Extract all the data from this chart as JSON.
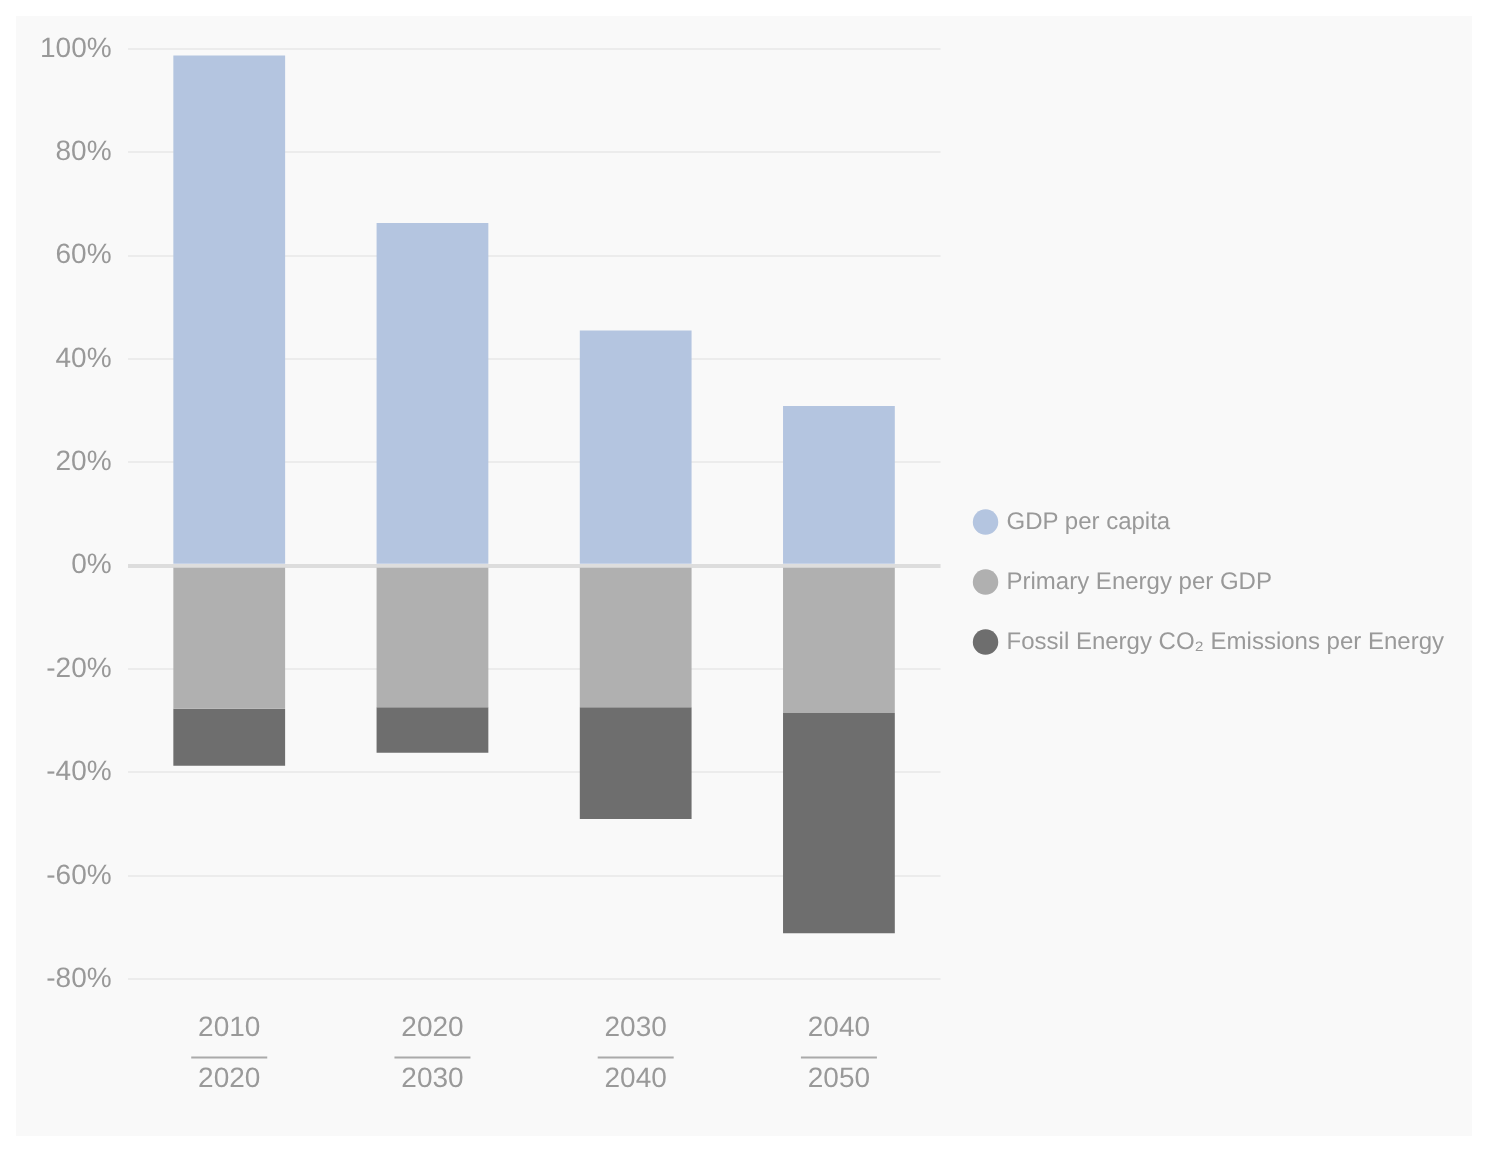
{
  "chart_data": {
    "type": "bar",
    "stacked": true,
    "categories": [
      "2010\n2020",
      "2020\n2030",
      "2030\n2040",
      "2040\n2050"
    ],
    "series": [
      {
        "name": "GDP per capita",
        "color": "#b4c5e0",
        "values": [
          98.7,
          66.3,
          45.5,
          30.9
        ]
      },
      {
        "name": "Primary Energy per GDP",
        "color": "#b0b0b0",
        "values": [
          -27.7,
          -27.4,
          -27.4,
          -28.5
        ]
      },
      {
        "name": "Fossil Energy CO₂ Emissions per Energy",
        "color": "#6e6e6e",
        "values": [
          -11,
          -8.8,
          -21.6,
          -42.6
        ]
      }
    ],
    "ylim": [
      -80,
      100
    ],
    "yticks": [
      {
        "value": 100,
        "label": "100%"
      },
      {
        "value": 80,
        "label": "80%"
      },
      {
        "value": 60,
        "label": "60%"
      },
      {
        "value": 40,
        "label": "40%"
      },
      {
        "value": 20,
        "label": "20%"
      },
      {
        "value": 0,
        "label": "0%"
      },
      {
        "value": -20,
        "label": "-20%"
      },
      {
        "value": -40,
        "label": "-40%"
      },
      {
        "value": -60,
        "label": "-60%"
      },
      {
        "value": -80,
        "label": "-80%"
      }
    ],
    "grid": "y",
    "legend": "right",
    "marker": "circle"
  }
}
